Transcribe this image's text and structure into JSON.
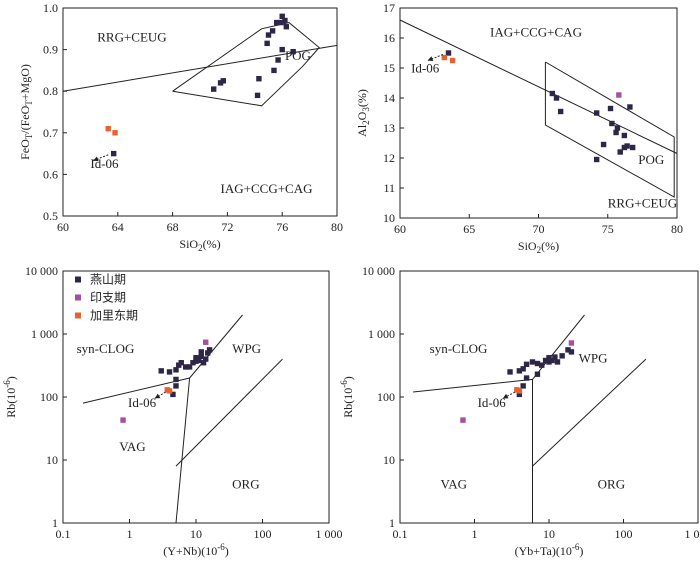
{
  "legend": {
    "items": [
      {
        "label": "燕山期",
        "color": "#2e2646"
      },
      {
        "label": "印支期",
        "color": "#a64ea0"
      },
      {
        "label": "加里东期",
        "color": "#e8622d"
      }
    ]
  },
  "chart_data": [
    {
      "id": "a",
      "type": "scatter",
      "xlabel_main": "SiO",
      "xlabel_sub": "2",
      "xlabel_tail": "(%)",
      "ylabel": "FeOT/(FeOT+MgO)",
      "xlim": [
        60,
        80
      ],
      "ylim": [
        0.5,
        1.0
      ],
      "xticks": [
        60,
        64,
        68,
        72,
        76,
        80
      ],
      "yticks": [
        0.5,
        0.6,
        0.7,
        0.8,
        0.9,
        1.0
      ],
      "xtick_labels": [
        "60",
        "64",
        "68",
        "72",
        "76",
        "80"
      ],
      "ytick_labels": [
        "0.5",
        "0.6",
        "0.7",
        "0.8",
        "0.9",
        "1.0"
      ],
      "region_labels": [
        {
          "text": "RRG+CEUG",
          "x": 62.5,
          "y": 0.92
        },
        {
          "text": "POG",
          "x": 76.2,
          "y": 0.875
        },
        {
          "text": "IAG+CCG+CAG",
          "x": 71.5,
          "y": 0.555
        }
      ],
      "lines": [
        {
          "points": [
            [
              60,
              0.8
            ],
            [
              80,
              0.91
            ]
          ]
        },
        {
          "points": [
            [
              68,
              0.8
            ],
            [
              74.5,
              0.95
            ],
            [
              76.5,
              0.965
            ],
            [
              78.7,
              0.905
            ],
            [
              77.5,
              0.86
            ],
            [
              74.5,
              0.765
            ],
            [
              68,
              0.8
            ]
          ]
        }
      ],
      "series": [
        {
          "name": "燕山期",
          "color": "#2e2646",
          "points": [
            [
              76.0,
              0.98
            ],
            [
              76.2,
              0.97
            ],
            [
              75.9,
              0.965
            ],
            [
              75.6,
              0.965
            ],
            [
              75.3,
              0.945
            ],
            [
              76.3,
              0.955
            ],
            [
              75.0,
              0.935
            ],
            [
              74.9,
              0.915
            ],
            [
              76.0,
              0.9
            ],
            [
              76.8,
              0.895
            ],
            [
              75.7,
              0.875
            ],
            [
              75.4,
              0.85
            ],
            [
              74.3,
              0.83
            ],
            [
              71.7,
              0.825
            ],
            [
              71.5,
              0.82
            ],
            [
              71.0,
              0.805
            ],
            [
              74.2,
              0.79
            ],
            [
              63.7,
              0.65
            ]
          ]
        },
        {
          "name": "加里东期",
          "color": "#e8622d",
          "points": [
            [
              63.3,
              0.71
            ],
            [
              63.8,
              0.7
            ]
          ]
        }
      ],
      "annotation": {
        "text": "Id-06",
        "x": 62.0,
        "y": 0.615,
        "arrow_from": [
          63.3,
          0.647
        ],
        "arrow_to": [
          62.2,
          0.633
        ]
      }
    },
    {
      "id": "b",
      "type": "scatter",
      "xlabel_main": "SiO",
      "xlabel_sub": "2",
      "xlabel_tail": "(%)",
      "ylabel": "Al2O3(%)",
      "xlim": [
        60,
        80
      ],
      "ylim": [
        10,
        17
      ],
      "xticks": [
        60,
        65,
        70,
        75,
        80
      ],
      "yticks": [
        10,
        11,
        12,
        13,
        14,
        15,
        16,
        17
      ],
      "xtick_labels": [
        "60",
        "65",
        "70",
        "75",
        "80"
      ],
      "ytick_labels": [
        "10",
        "11",
        "12",
        "13",
        "14",
        "15",
        "16",
        "17"
      ],
      "region_labels": [
        {
          "text": "IAG+CCG+CAG",
          "x": 66.5,
          "y": 16.05
        },
        {
          "text": "POG",
          "x": 77.2,
          "y": 11.8
        },
        {
          "text": "RRG+CEUG",
          "x": 75.0,
          "y": 10.35
        }
      ],
      "lines": [
        {
          "points": [
            [
              60,
              16.6
            ],
            [
              80,
              12.15
            ]
          ]
        },
        {
          "points": [
            [
              70.5,
              15.2
            ],
            [
              79.8,
              12.7
            ],
            [
              79.8,
              10.7
            ],
            [
              70.5,
              13.1
            ],
            [
              70.5,
              15.2
            ]
          ]
        }
      ],
      "series": [
        {
          "name": "燕山期",
          "color": "#2e2646",
          "points": [
            [
              63.5,
              15.5
            ],
            [
              71.0,
              14.15
            ],
            [
              71.3,
              14.0
            ],
            [
              75.2,
              13.65
            ],
            [
              76.6,
              13.7
            ],
            [
              71.6,
              13.55
            ],
            [
              74.2,
              13.5
            ],
            [
              75.3,
              13.15
            ],
            [
              75.7,
              13.0
            ],
            [
              75.6,
              12.85
            ],
            [
              76.2,
              12.75
            ],
            [
              74.7,
              12.45
            ],
            [
              76.4,
              12.4
            ],
            [
              76.2,
              12.35
            ],
            [
              76.8,
              12.35
            ],
            [
              75.9,
              12.2
            ],
            [
              74.2,
              11.95
            ]
          ]
        },
        {
          "name": "印支期",
          "color": "#a64ea0",
          "points": [
            [
              75.8,
              14.1
            ]
          ]
        },
        {
          "name": "加里东期",
          "color": "#e8622d",
          "points": [
            [
              63.2,
              15.35
            ],
            [
              63.8,
              15.25
            ]
          ]
        }
      ],
      "annotation": {
        "text": "Id-06",
        "x": 60.8,
        "y": 14.85,
        "arrow_from": [
          63.1,
          15.45
        ],
        "arrow_to": [
          62.0,
          15.25
        ]
      }
    },
    {
      "id": "c",
      "type": "scatter",
      "log": true,
      "xlabel_main": "(Y+Nb)(10",
      "xlabel_sup": "-6",
      "xlabel_tail": ")",
      "ylabel": "Rb(10-6)",
      "xlim": [
        0.1,
        1000
      ],
      "ylim": [
        1,
        10000
      ],
      "xticks": [
        0.1,
        1,
        10,
        100,
        1000
      ],
      "yticks": [
        1,
        10,
        100,
        1000,
        10000
      ],
      "xtick_labels": [
        "0.1",
        "1",
        "10",
        "100",
        "1 000"
      ],
      "ytick_labels": [
        "1",
        "10",
        "100",
        "1 000",
        "10 000"
      ],
      "region_labels": [
        {
          "text": "syn-CLOG",
          "x": 0.16,
          "y": 500
        },
        {
          "text": "WPG",
          "x": 35,
          "y": 500
        },
        {
          "text": "VAG",
          "x": 0.7,
          "y": 14
        },
        {
          "text": "ORG",
          "x": 35,
          "y": 3.5
        }
      ],
      "lines": [
        {
          "points": [
            [
              0.2,
              80
            ],
            [
              8,
              200
            ],
            [
              50,
              2000
            ]
          ]
        },
        {
          "points": [
            [
              8,
              200
            ],
            [
              5,
              1
            ]
          ]
        },
        {
          "points": [
            [
              5,
              8
            ],
            [
              200,
              400
            ]
          ]
        }
      ],
      "series": [
        {
          "name": "燕山期",
          "color": "#2e2646",
          "points": [
            [
              5.5,
              320
            ],
            [
              6,
              350
            ],
            [
              7,
              300
            ],
            [
              8,
              300
            ],
            [
              9,
              350
            ],
            [
              10,
              420
            ],
            [
              10,
              370
            ],
            [
              11,
              380
            ],
            [
              12,
              440
            ],
            [
              13,
              350
            ],
            [
              14,
              400
            ],
            [
              15,
              500
            ],
            [
              16,
              560
            ],
            [
              12,
              520
            ],
            [
              4,
              250
            ],
            [
              5,
              270
            ],
            [
              5,
              190
            ],
            [
              5,
              150
            ],
            [
              4.5,
              110
            ],
            [
              3,
              260
            ]
          ]
        },
        {
          "name": "印支期",
          "color": "#a64ea0",
          "points": [
            [
              14,
              740
            ],
            [
              0.8,
              43
            ]
          ]
        },
        {
          "name": "加里东期",
          "color": "#e8622d",
          "points": [
            [
              3.7,
              130
            ],
            [
              4.0,
              125
            ]
          ]
        }
      ],
      "annotation": {
        "text": "Id-06",
        "x": 0.95,
        "y": 70,
        "arrow_from": [
          3.5,
          120
        ],
        "arrow_to": [
          2.4,
          95
        ]
      }
    },
    {
      "id": "d",
      "type": "scatter",
      "log": true,
      "xlabel_main": "(Yb+Ta)(10",
      "xlabel_sup": "-6",
      "xlabel_tail": ")",
      "ylabel": "Rb(10-6)",
      "xlim": [
        0.1,
        1000
      ],
      "ylim": [
        1,
        10000
      ],
      "xticks": [
        0.1,
        1,
        10,
        100,
        1000
      ],
      "yticks": [
        1,
        10,
        100,
        1000,
        10000
      ],
      "xtick_labels": [
        "0.1",
        "1",
        "10",
        "100",
        "1 000"
      ],
      "ytick_labels": [
        "1",
        "10",
        "100",
        "1 000",
        "10 000"
      ],
      "region_labels": [
        {
          "text": "syn-CLOG",
          "x": 0.25,
          "y": 500
        },
        {
          "text": "WPG",
          "x": 25,
          "y": 350
        },
        {
          "text": "VAG",
          "x": 0.35,
          "y": 3.5
        },
        {
          "text": "ORG",
          "x": 45,
          "y": 3.5
        }
      ],
      "lines": [
        {
          "points": [
            [
              0.15,
              120
            ],
            [
              6,
              190
            ],
            [
              30,
              2000
            ]
          ]
        },
        {
          "points": [
            [
              6,
              190
            ],
            [
              6,
              1
            ]
          ]
        },
        {
          "points": [
            [
              6,
              8
            ],
            [
              200,
              400
            ]
          ]
        }
      ],
      "series": [
        {
          "name": "燕山期",
          "color": "#2e2646",
          "points": [
            [
              5,
              330
            ],
            [
              6,
              360
            ],
            [
              7,
              340
            ],
            [
              8,
              320
            ],
            [
              9,
              380
            ],
            [
              10,
              420
            ],
            [
              10,
              360
            ],
            [
              11,
              380
            ],
            [
              12,
              430
            ],
            [
              13,
              360
            ],
            [
              15,
              450
            ],
            [
              18,
              560
            ],
            [
              20,
              520
            ],
            [
              3,
              250
            ],
            [
              4,
              260
            ],
            [
              4.5,
              280
            ],
            [
              5,
              200
            ],
            [
              4.5,
              150
            ],
            [
              4,
              110
            ],
            [
              7,
              230
            ]
          ]
        },
        {
          "name": "印支期",
          "color": "#a64ea0",
          "points": [
            [
              20,
              720
            ],
            [
              0.7,
              43
            ]
          ]
        },
        {
          "name": "加里东期",
          "color": "#e8622d",
          "points": [
            [
              3.7,
              130
            ],
            [
              4.0,
              125
            ]
          ]
        }
      ],
      "annotation": {
        "text": "Id-06",
        "x": 1.1,
        "y": 70,
        "arrow_from": [
          3.5,
          120
        ],
        "arrow_to": [
          2.4,
          95
        ]
      }
    }
  ]
}
